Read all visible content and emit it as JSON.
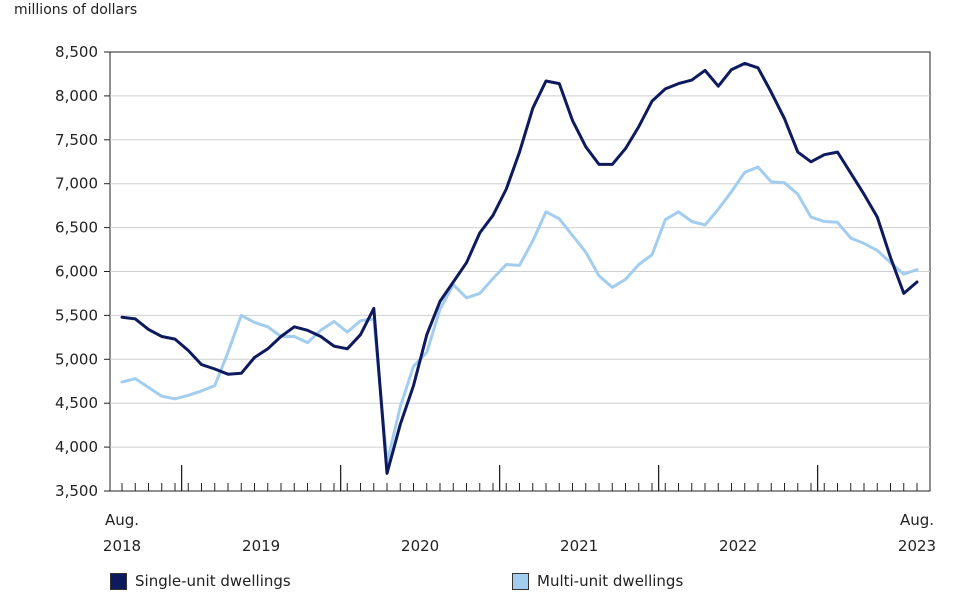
{
  "chart_data": {
    "type": "line",
    "title": "",
    "ylabel": "millions of dollars",
    "xlabel": "",
    "ylim": [
      3500,
      8500
    ],
    "yticks": [
      3500,
      4000,
      4500,
      5000,
      5500,
      6000,
      6500,
      7000,
      7500,
      8000,
      8500
    ],
    "ytick_labels": [
      "3,500",
      "4,000",
      "4,500",
      "5,000",
      "5,500",
      "6,000",
      "6,500",
      "7,000",
      "7,500",
      "8,000",
      "8,500"
    ],
    "x_start": "2018-08",
    "x_end": "2023-08",
    "x_labels": [
      {
        "month_index": 0,
        "lines": [
          "Aug.",
          "2018"
        ]
      },
      {
        "month_index": 10.5,
        "lines": [
          "",
          "2019"
        ]
      },
      {
        "month_index": 22.5,
        "lines": [
          "",
          "2020"
        ]
      },
      {
        "month_index": 34.5,
        "lines": [
          "",
          "2021"
        ]
      },
      {
        "month_index": 46.5,
        "lines": [
          "",
          "2022"
        ]
      },
      {
        "month_index": 60,
        "lines": [
          "Aug.",
          "2023"
        ]
      }
    ],
    "grid": true,
    "legend": "bottom",
    "series": [
      {
        "name": "Single-unit dwellings",
        "color": "#0e1a5e",
        "values": [
          5480,
          5460,
          5340,
          5260,
          5230,
          5100,
          4940,
          4890,
          4830,
          4840,
          5020,
          5120,
          5260,
          5370,
          5330,
          5260,
          5150,
          5120,
          5280,
          5580,
          3700,
          4260,
          4700,
          5280,
          5660,
          5880,
          6100,
          6440,
          6640,
          6940,
          7360,
          7860,
          8170,
          8140,
          7720,
          7420,
          7220,
          7220,
          7400,
          7650,
          7940,
          8080,
          8140,
          8180,
          8290,
          8110,
          8300,
          8370,
          8320,
          8040,
          7740,
          7360,
          7250,
          7330,
          7360,
          7120,
          6880,
          6620,
          6160,
          5750,
          5880
        ]
      },
      {
        "name": "Multi-unit dwellings",
        "color": "#a3cdef",
        "values": [
          4740,
          4780,
          4680,
          4580,
          4550,
          4590,
          4640,
          4700,
          5080,
          5500,
          5420,
          5370,
          5260,
          5260,
          5190,
          5330,
          5430,
          5310,
          5440,
          5460,
          3820,
          4460,
          4920,
          5080,
          5570,
          5850,
          5700,
          5750,
          5920,
          6080,
          6070,
          6350,
          6680,
          6600,
          6410,
          6220,
          5950,
          5820,
          5910,
          6080,
          6190,
          6590,
          6680,
          6570,
          6530,
          6710,
          6910,
          7130,
          7190,
          7020,
          7010,
          6880,
          6620,
          6570,
          6560,
          6380,
          6320,
          6240,
          6100,
          5970,
          6020
        ]
      }
    ]
  }
}
